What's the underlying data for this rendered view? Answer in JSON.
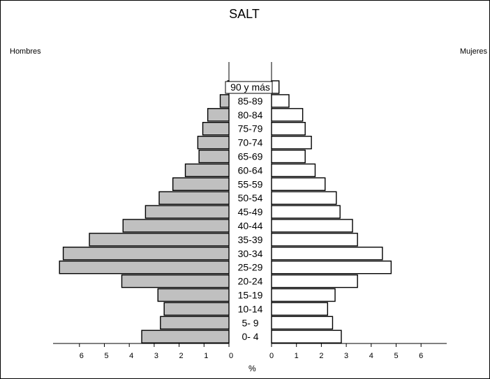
{
  "chart_data": {
    "type": "bar",
    "title": "SALT",
    "left_label": "Hombres",
    "right_label": "Mujeres",
    "xlabel": "%",
    "categories": [
      "90 y más",
      "85-89",
      "80-84",
      "75-79",
      "70-74",
      "65-69",
      "60-64",
      "55-59",
      "50-54",
      "45-49",
      "40-44",
      "35-39",
      "30-34",
      "25-29",
      "20-24",
      "15-19",
      "10-14",
      "5- 9",
      "0- 4"
    ],
    "series": [
      {
        "name": "Hombres",
        "values": [
          0.05,
          0.35,
          0.85,
          1.05,
          1.25,
          1.2,
          1.75,
          2.25,
          2.8,
          3.35,
          4.25,
          5.6,
          6.65,
          6.8,
          4.3,
          2.85,
          2.6,
          2.75,
          3.5
        ]
      },
      {
        "name": "Mujeres",
        "values": [
          0.3,
          0.7,
          1.25,
          1.35,
          1.6,
          1.35,
          1.75,
          2.15,
          2.6,
          2.75,
          3.25,
          3.45,
          4.45,
          4.8,
          3.45,
          2.55,
          2.25,
          2.45,
          2.8
        ]
      }
    ],
    "x_ticks": [
      "0",
      "1",
      "2",
      "3",
      "4",
      "5",
      "6"
    ],
    "xlim": [
      0,
      7
    ],
    "colors": {
      "hombres": "#c0c0c0",
      "mujeres": "#ffffff",
      "outline": "#000000"
    }
  }
}
